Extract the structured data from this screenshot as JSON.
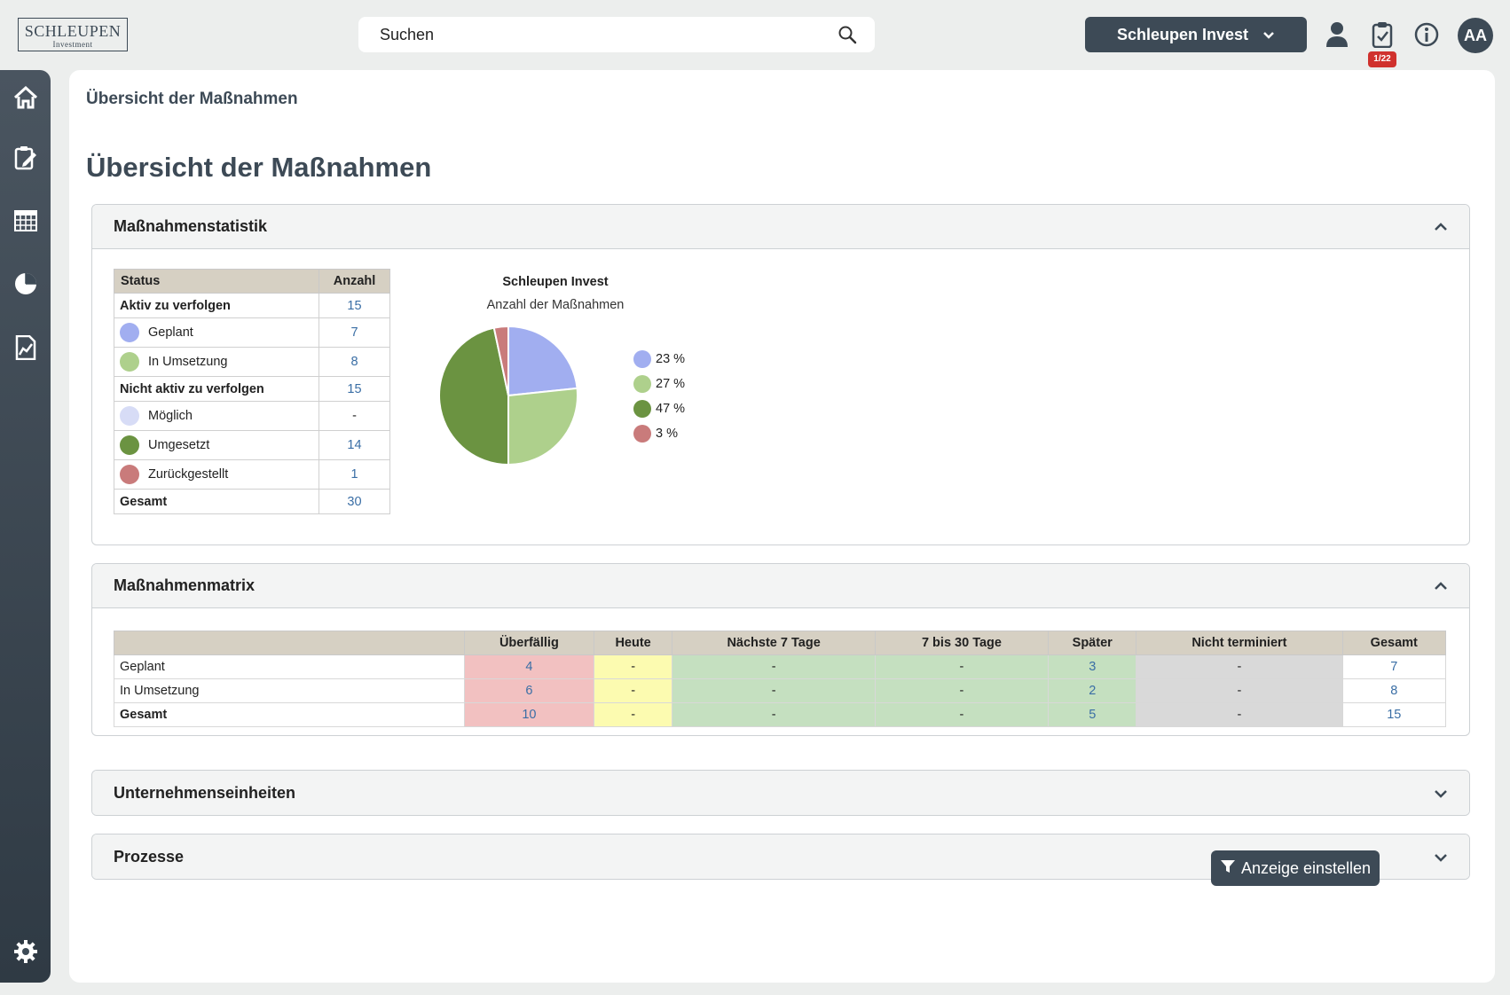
{
  "header": {
    "logo_main": "SCHLEUPEN",
    "logo_sub": "Investment",
    "search_placeholder": "Suchen",
    "tenant": "Schleupen Invest",
    "task_badge": "1/22",
    "avatar": "AA"
  },
  "sidebar": {
    "items": [
      "home-icon",
      "task-edit-icon",
      "calendar-icon",
      "pie-chart-icon",
      "report-icon"
    ],
    "bottom": "gear-icon"
  },
  "page": {
    "breadcrumb": "Übersicht der Maßnahmen",
    "title": "Übersicht der Maßnahmen"
  },
  "stats_panel": {
    "title": "Maßnahmenstatistik",
    "table": {
      "col_status": "Status",
      "col_count": "Anzahl",
      "rows": [
        {
          "label": "Aktiv zu verfolgen",
          "value": "15"
        },
        {
          "label": "Geplant",
          "value": "7",
          "color": "#a1aef0"
        },
        {
          "label": "In Umsetzung",
          "value": "8",
          "color": "#aed08c"
        },
        {
          "label": "Nicht aktiv zu verfolgen",
          "value": "15"
        },
        {
          "label": "Möglich",
          "value": "-",
          "color": "#d7dcf6"
        },
        {
          "label": "Umgesetzt",
          "value": "14",
          "color": "#6b9341"
        },
        {
          "label": "Zurückgestellt",
          "value": "1",
          "color": "#c97b7b"
        },
        {
          "label": "Gesamt",
          "value": "30"
        }
      ]
    }
  },
  "chart_data": {
    "type": "pie",
    "title": "Schleupen Invest",
    "subtitle": "Anzahl der Maßnahmen",
    "labels": [
      "23 %",
      "27 %",
      "47 %",
      "3 %"
    ],
    "values": [
      7,
      8,
      14,
      1
    ],
    "colors": [
      "#a1aef0",
      "#aed08c",
      "#6b9341",
      "#c97b7b"
    ]
  },
  "matrix_panel": {
    "title": "Maßnahmenmatrix",
    "columns": [
      "",
      "Überfällig",
      "Heute",
      "Nächste 7 Tage",
      "7 bis 30 Tage",
      "Später",
      "Nicht terminiert",
      "Gesamt"
    ],
    "rows": [
      {
        "label": "Geplant",
        "cells": [
          "4",
          "-",
          "-",
          "-",
          "3",
          "-",
          "7"
        ]
      },
      {
        "label": "In Umsetzung",
        "cells": [
          "6",
          "-",
          "-",
          "-",
          "2",
          "-",
          "8"
        ]
      },
      {
        "label": "Gesamt",
        "cells": [
          "10",
          "-",
          "-",
          "-",
          "5",
          "-",
          "15"
        ]
      }
    ]
  },
  "collapsed_panels": {
    "units": "Unternehmenseinheiten",
    "processes": "Prozesse"
  },
  "footer": {
    "filter_button": "Anzeige einstellen"
  }
}
